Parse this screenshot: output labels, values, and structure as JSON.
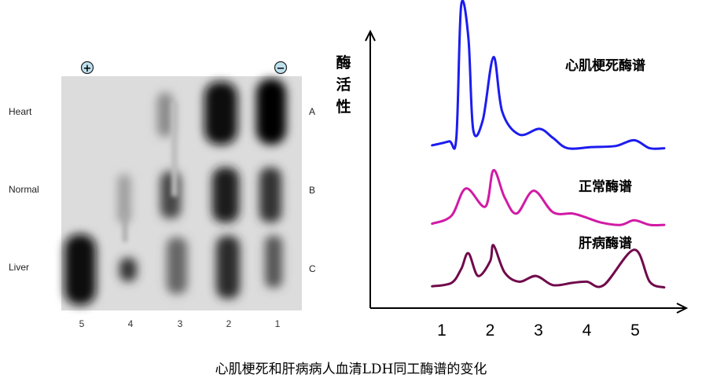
{
  "caption": "心肌梗死和肝病病人血清LDH同工酶谱的变化",
  "gel": {
    "anode_symbol": "+",
    "cathode_symbol": "−",
    "rows": [
      {
        "name": "Heart",
        "letter": "A"
      },
      {
        "name": "Normal",
        "letter": "B"
      },
      {
        "name": "Liver",
        "letter": "C"
      }
    ],
    "lanes": [
      "5",
      "4",
      "3",
      "2",
      "1"
    ]
  },
  "chart_data": {
    "type": "line",
    "ylabel": "酶活性",
    "x_ticks": [
      "1",
      "2",
      "3",
      "4",
      "5"
    ],
    "series": [
      {
        "name": "心肌梗死酶谱",
        "color": "#1c1cf0",
        "points": [
          [
            0.8,
            0.35
          ],
          [
            1.15,
            0.7
          ],
          [
            1.3,
            1.0
          ],
          [
            1.4,
            12.6
          ],
          [
            1.55,
            9.8
          ],
          [
            1.65,
            1.7
          ],
          [
            1.85,
            2.6
          ],
          [
            2.07,
            8.1
          ],
          [
            2.25,
            3.3
          ],
          [
            2.6,
            1.3
          ],
          [
            3.02,
            1.8
          ],
          [
            3.3,
            1.0
          ],
          [
            3.6,
            0.1
          ],
          [
            4.1,
            0.2
          ],
          [
            4.6,
            0.3
          ],
          [
            4.98,
            0.8
          ],
          [
            5.3,
            0.1
          ],
          [
            5.6,
            0.1
          ]
        ]
      },
      {
        "name": "正常酶谱",
        "color": "#d11aa6",
        "points": [
          [
            0.8,
            0.3
          ],
          [
            1.2,
            1.0
          ],
          [
            1.5,
            3.4
          ],
          [
            1.9,
            1.8
          ],
          [
            2.07,
            5.0
          ],
          [
            2.3,
            2.6
          ],
          [
            2.55,
            1.2
          ],
          [
            2.9,
            3.2
          ],
          [
            3.3,
            1.3
          ],
          [
            3.7,
            1.2
          ],
          [
            3.95,
            0.9
          ],
          [
            4.3,
            0.4
          ],
          [
            4.7,
            0.2
          ],
          [
            4.98,
            0.6
          ],
          [
            5.3,
            0.2
          ],
          [
            5.6,
            0.2
          ]
        ]
      },
      {
        "name": "肝病酶谱",
        "color": "#700a4b",
        "points": [
          [
            0.8,
            0.4
          ],
          [
            1.2,
            0.7
          ],
          [
            1.4,
            1.9
          ],
          [
            1.55,
            3.3
          ],
          [
            1.75,
            1.3
          ],
          [
            2.0,
            2.6
          ],
          [
            2.07,
            4.0
          ],
          [
            2.3,
            1.6
          ],
          [
            2.6,
            0.8
          ],
          [
            2.95,
            1.3
          ],
          [
            3.3,
            0.5
          ],
          [
            3.7,
            0.7
          ],
          [
            4.0,
            0.8
          ],
          [
            4.35,
            0.5
          ],
          [
            4.98,
            3.6
          ],
          [
            5.3,
            0.8
          ],
          [
            5.6,
            0.3
          ]
        ]
      }
    ]
  }
}
